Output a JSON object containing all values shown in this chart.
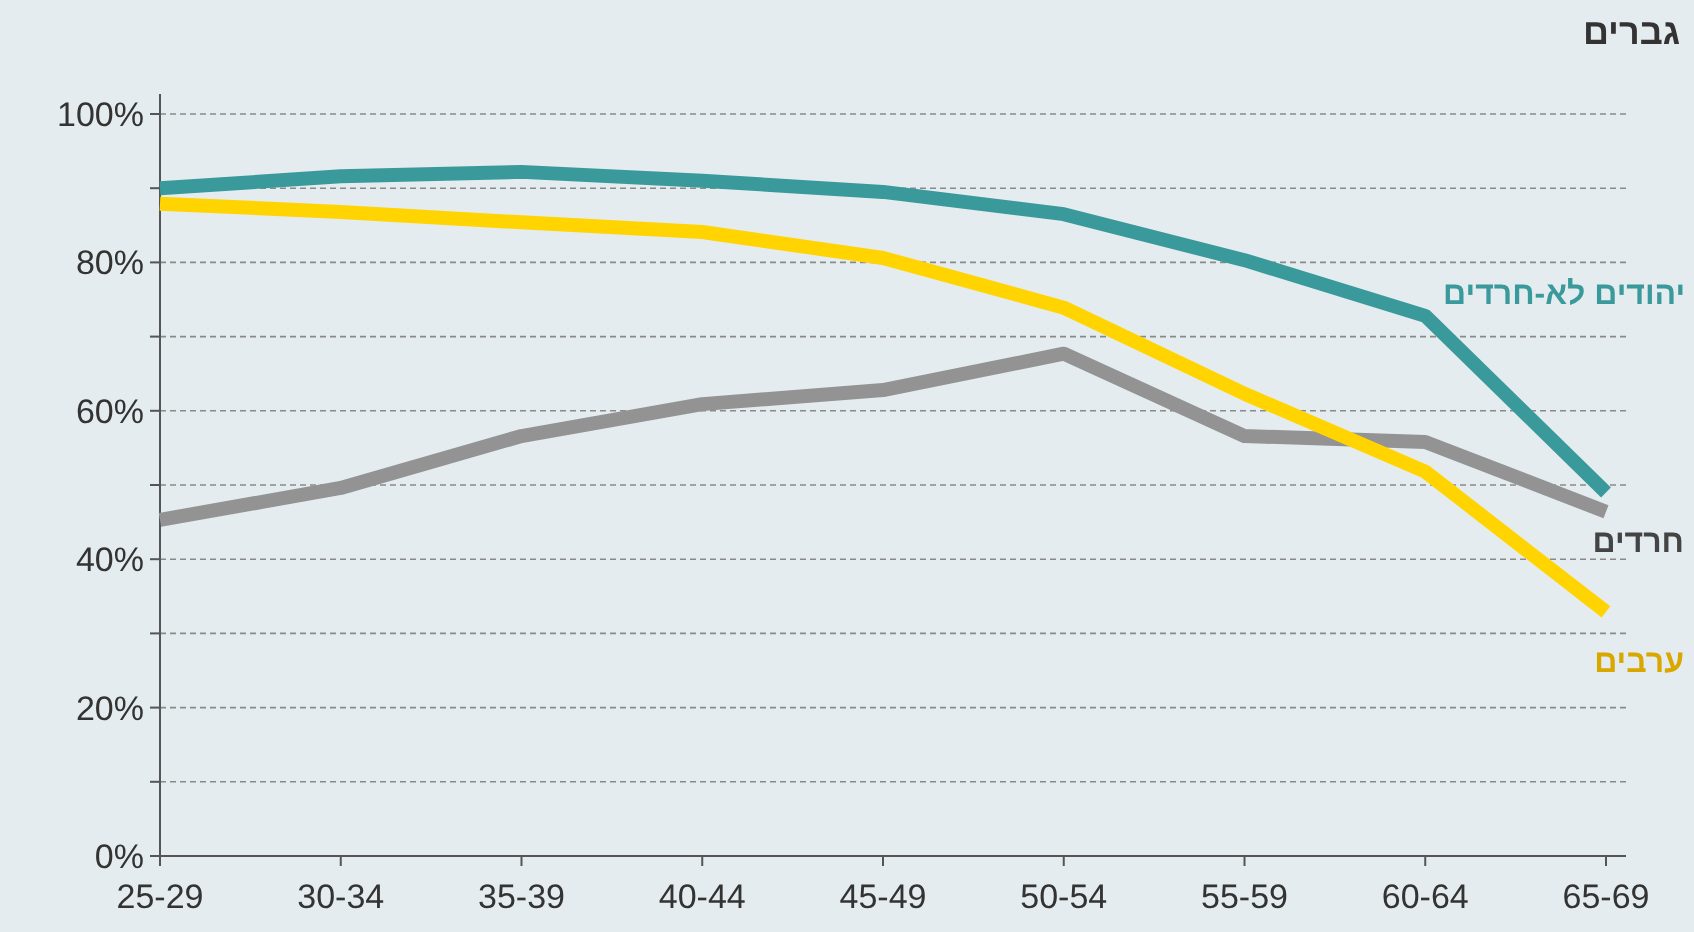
{
  "chart_data": {
    "type": "line",
    "title": "גברים",
    "categories": [
      "25-29",
      "30-34",
      "35-39",
      "40-44",
      "45-49",
      "50-54",
      "55-59",
      "60-64",
      "65-69"
    ],
    "series": [
      {
        "name": "יהודים לא-חרדים",
        "color": "#3a9a9b",
        "values": [
          90,
          91.6,
          92.2,
          91,
          89.5,
          86.5,
          80.3,
          72.8,
          49
        ]
      },
      {
        "name": "חרדים",
        "color": "#939393",
        "values": [
          45.3,
          49.6,
          56.6,
          60.9,
          62.8,
          67.7,
          56.6,
          55.8,
          46.4
        ]
      },
      {
        "name": "ערבים",
        "color": "#ffd400",
        "values": [
          87.9,
          86.8,
          85.4,
          84.1,
          80.6,
          73.9,
          62.3,
          51.8,
          32.9
        ]
      }
    ],
    "ylim": [
      0,
      100
    ],
    "yticks": [
      {
        "value": 0,
        "label": "0%"
      },
      {
        "value": 10,
        "label": null
      },
      {
        "value": 20,
        "label": "20%"
      },
      {
        "value": 30,
        "label": null
      },
      {
        "value": 40,
        "label": "40%"
      },
      {
        "value": 50,
        "label": null
      },
      {
        "value": 60,
        "label": "60%"
      },
      {
        "value": 70,
        "label": null
      },
      {
        "value": 80,
        "label": "80%"
      },
      {
        "value": 90,
        "label": null
      },
      {
        "value": 100,
        "label": "100%"
      }
    ],
    "grid": "y",
    "marker": "none",
    "line_style": "solid"
  }
}
